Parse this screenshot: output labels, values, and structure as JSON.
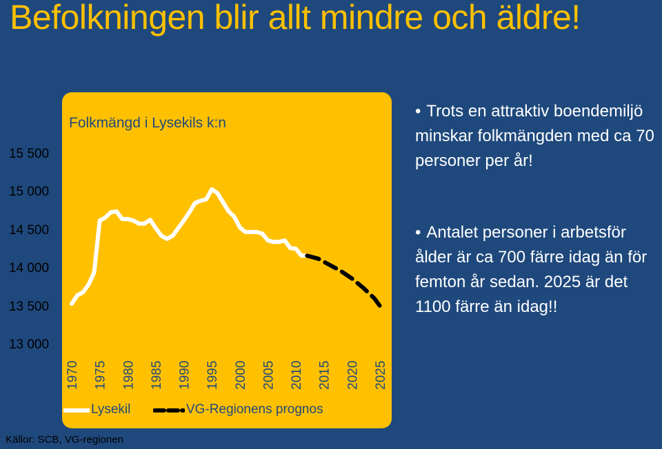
{
  "slide": {
    "title": "Befolkningen blir allt mindre och äldre!",
    "source": "Källor: SCB, VG-regionen"
  },
  "bullets": [
    "Trots en attraktiv boendemiljö minskar folkmängden med ca 70 personer per år!",
    "Antalet personer i arbetsför ålder är ca 700 färre idag än för femton år sedan. 2025 är det 1100 färre än idag!!"
  ],
  "colors": {
    "background": "#1F497D",
    "panel": "#FFC000",
    "lysekil_line": "#FFFFFF",
    "prognos_line": "#000000"
  },
  "chart_data": {
    "type": "line",
    "title": "Folkmängd i Lysekils k:n",
    "xlabel": "",
    "ylabel": "",
    "xlim": [
      1970,
      2025
    ],
    "ylim": [
      13000,
      15600
    ],
    "x_ticks": [
      "1970",
      "1975",
      "1980",
      "1985",
      "1990",
      "1995",
      "2000",
      "2005",
      "2010",
      "2015",
      "2020",
      "2025"
    ],
    "y_ticks": [
      {
        "value": 15500,
        "label": "15 500"
      },
      {
        "value": 15000,
        "label": "15 000"
      },
      {
        "value": 14500,
        "label": "14 500"
      },
      {
        "value": 14000,
        "label": "14 000"
      },
      {
        "value": 13500,
        "label": "13 500"
      },
      {
        "value": 13000,
        "label": "13 000"
      }
    ],
    "grid": false,
    "legend_position": "bottom",
    "series": [
      {
        "name": "Lysekil",
        "style": "solid",
        "x": [
          1970,
          1971,
          1972,
          1973,
          1974,
          1975,
          1976,
          1977,
          1978,
          1979,
          1980,
          1981,
          1982,
          1983,
          1984,
          1985,
          1986,
          1987,
          1988,
          1989,
          1990,
          1991,
          1992,
          1993,
          1994,
          1995,
          1996,
          1997,
          1998,
          1999,
          2000,
          2001,
          2002,
          2003,
          2004,
          2005,
          2006,
          2007,
          2008,
          2009,
          2010,
          2011,
          2012
        ],
        "values": [
          13550,
          13660,
          13700,
          13800,
          13960,
          14640,
          14680,
          14750,
          14760,
          14660,
          14660,
          14640,
          14600,
          14600,
          14650,
          14540,
          14440,
          14400,
          14440,
          14540,
          14640,
          14750,
          14870,
          14900,
          14920,
          15050,
          15000,
          14880,
          14760,
          14690,
          14550,
          14490,
          14490,
          14490,
          14470,
          14380,
          14360,
          14360,
          14380,
          14280,
          14270,
          14180,
          14180
        ]
      },
      {
        "name": "VG-Regionens prognos",
        "style": "dashed",
        "x": [
          2012,
          2014,
          2016,
          2018,
          2020,
          2022,
          2024,
          2025
        ],
        "values": [
          14180,
          14140,
          14060,
          13980,
          13880,
          13760,
          13620,
          13520
        ]
      }
    ]
  }
}
